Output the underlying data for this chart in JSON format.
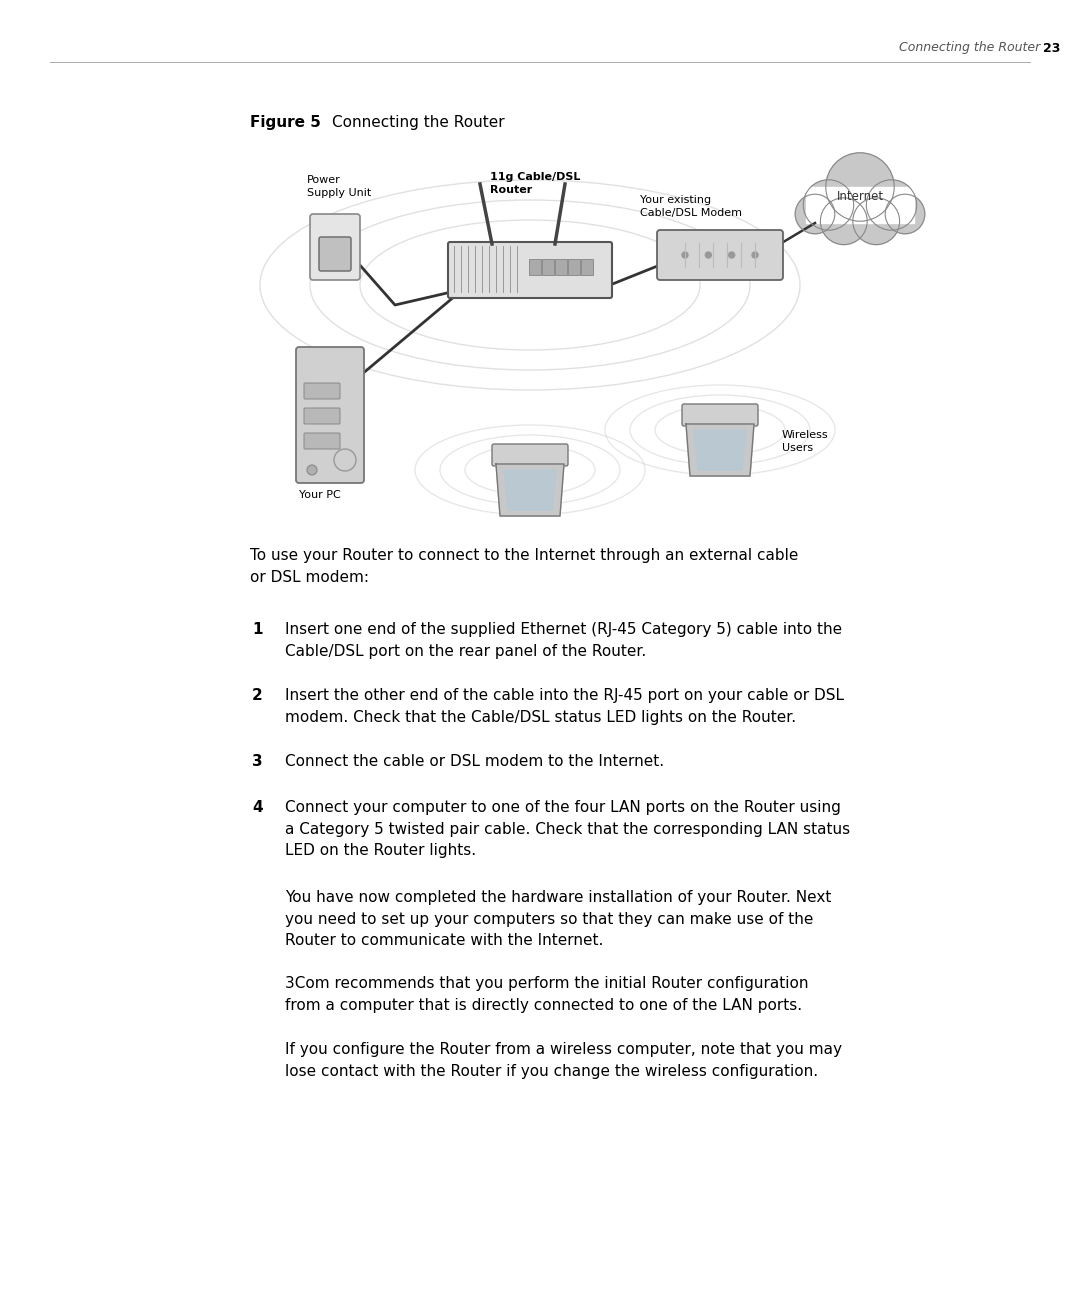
{
  "page_header_italic": "Connecting the Router",
  "page_number": "23",
  "figure_label": "Figure 5",
  "figure_title": "Connecting the Router",
  "diagram_labels": {
    "power_supply": "Power\nSupply Unit",
    "router": "11g Cable/DSL\nRouter",
    "modem": "Your existing\nCable/DSL Modem",
    "internet": "Internet",
    "your_pc": "Your PC",
    "wireless": "Wireless\nUsers"
  },
  "intro_text": "To use your Router to connect to the Internet through an external cable\nor DSL modem:",
  "steps": [
    {
      "num": "1",
      "text": "Insert one end of the supplied Ethernet (RJ-45 Category 5) cable into the\nCable/DSL port on the rear panel of the Router."
    },
    {
      "num": "2",
      "text": "Insert the other end of the cable into the RJ-45 port on your cable or DSL\nmodem. Check that the Cable/DSL status LED lights on the Router."
    },
    {
      "num": "3",
      "text": "Connect the cable or DSL modem to the Internet."
    },
    {
      "num": "4",
      "text": "Connect your computer to one of the four LAN ports on the Router using\na Category 5 twisted pair cable. Check that the corresponding LAN status\nLED on the Router lights."
    }
  ],
  "paragraphs": [
    "You have now completed the hardware installation of your Router. Next\nyou need to set up your computers so that they can make use of the\nRouter to communicate with the Internet.",
    "3Com recommends that you perform the initial Router configuration\nfrom a computer that is directly connected to one of the LAN ports.",
    "If you configure the Router from a wireless computer, note that you may\nlose contact with the Router if you change the wireless configuration."
  ],
  "bg_color": "#ffffff",
  "text_color": "#000000",
  "header_color": "#555555",
  "cable_color": "#333333",
  "device_fill": "#d8d8d8",
  "device_edge": "#666666",
  "ring_color": "#cccccc",
  "cloud_fill": "#c8c8c8"
}
